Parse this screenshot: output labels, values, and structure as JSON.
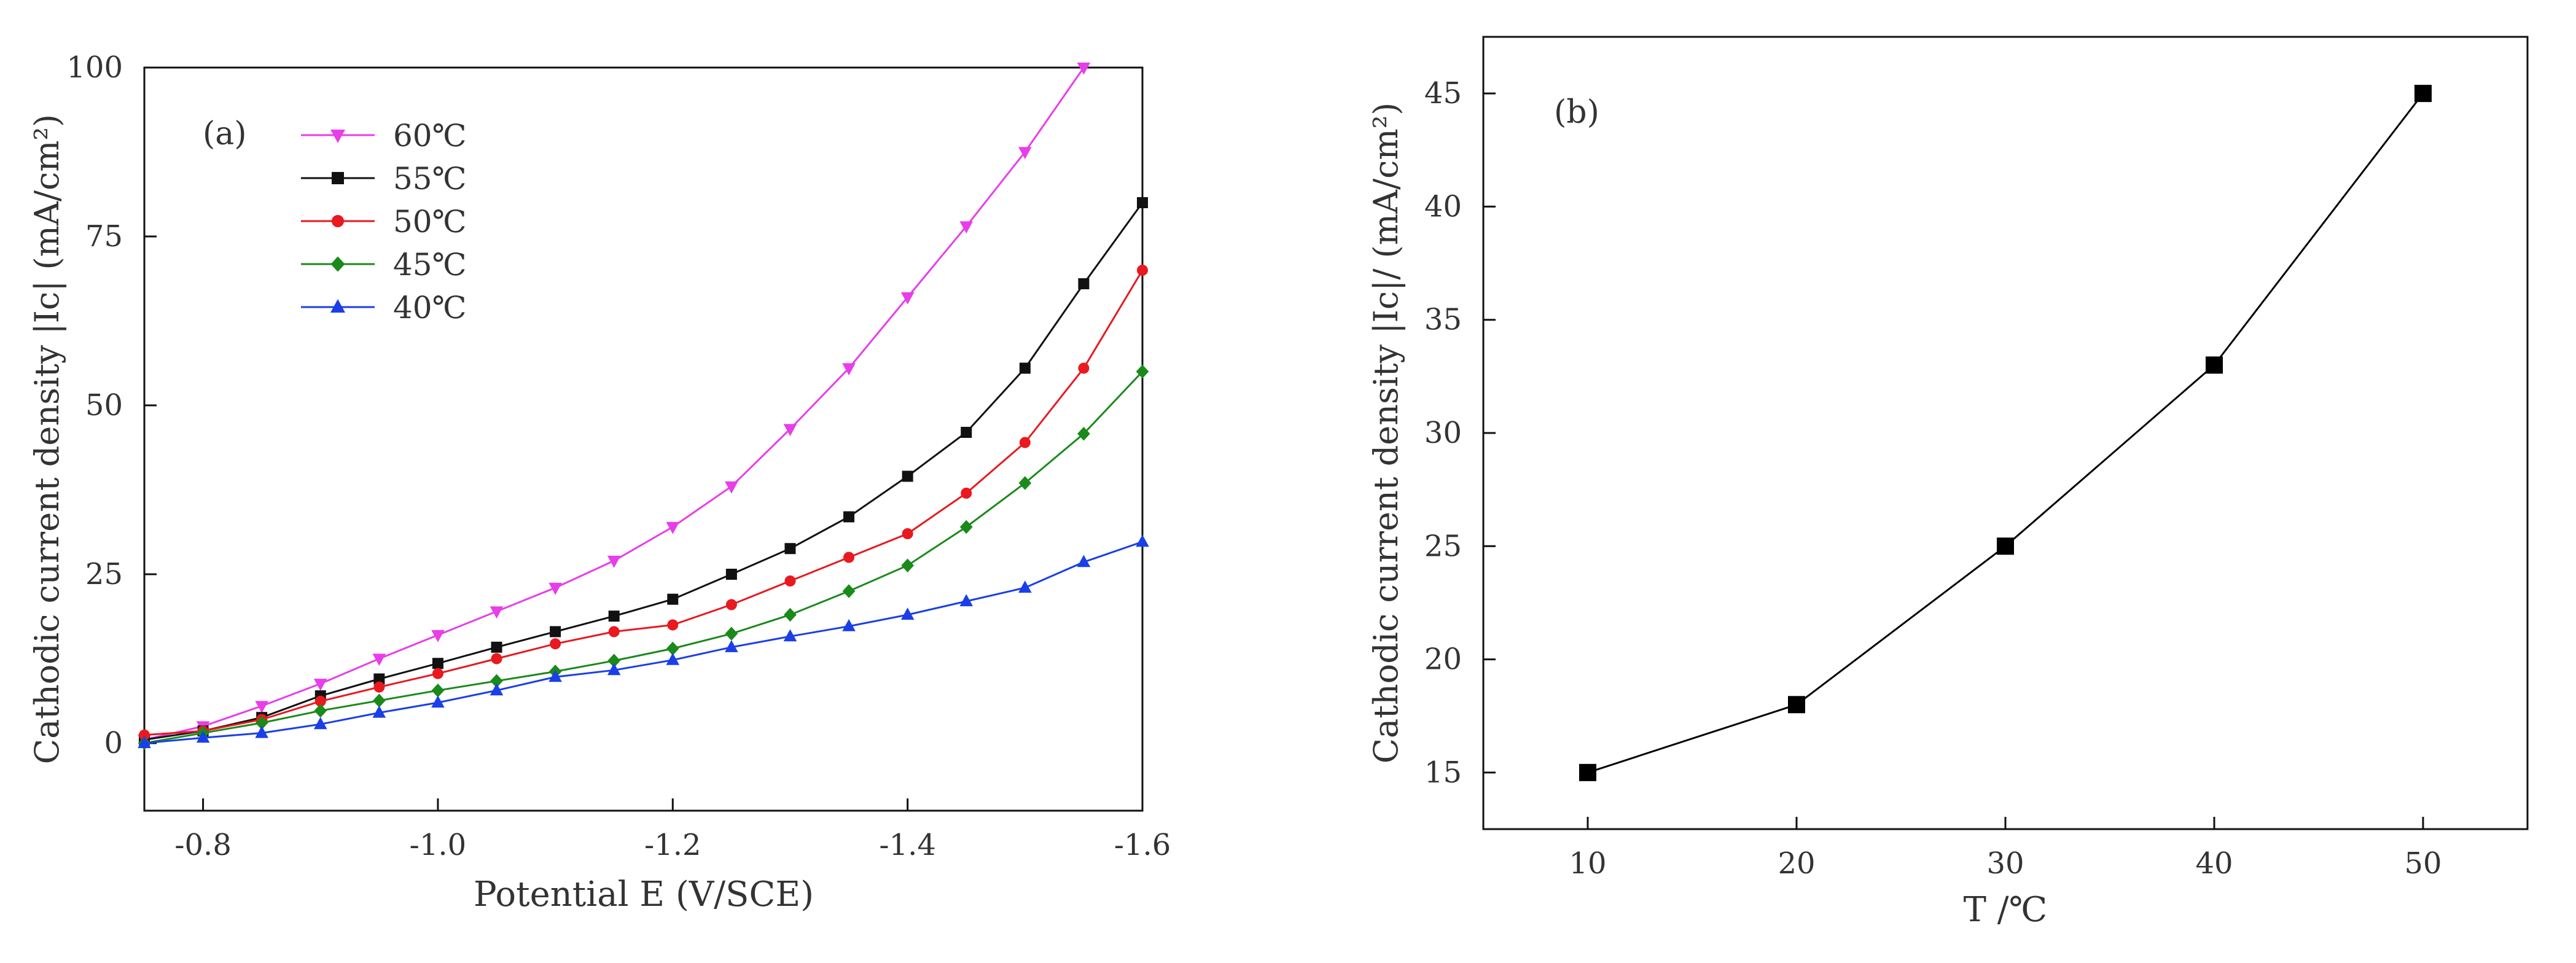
{
  "chart_data": [
    {
      "panel": "(a)",
      "type": "line",
      "title": "",
      "xlabel": "Potential E (V/SCE)",
      "ylabel": "Cathodic current density |Ic| (mA/cm²)",
      "xlim": [
        -0.75,
        -1.6
      ],
      "ylim": [
        -10,
        100
      ],
      "xticks": [
        -0.8,
        -1.0,
        -1.2,
        -1.4,
        -1.6
      ],
      "yticks": [
        0,
        25,
        50,
        75,
        100
      ],
      "xtick_labels": [
        "-0.8",
        "-1.0",
        "-1.2",
        "-1.4",
        "-1.6"
      ],
      "ytick_labels": [
        "0",
        "25",
        "50",
        "75",
        "100"
      ],
      "legend_position": "top-left",
      "x": [
        -0.75,
        -0.8,
        -0.85,
        -0.9,
        -0.95,
        -1.0,
        -1.05,
        -1.1,
        -1.15,
        -1.2,
        -1.25,
        -1.3,
        -1.35,
        -1.4,
        -1.45,
        -1.5,
        -1.55,
        -1.6
      ],
      "series": [
        {
          "name": "60℃",
          "color": "#e83ee8",
          "marker": "triangle-down",
          "values": [
            0.5,
            2.5,
            5.5,
            8.8,
            12.5,
            16.0,
            19.5,
            23.0,
            27.0,
            32.0,
            38.0,
            46.5,
            55.5,
            66.0,
            76.5,
            87.5,
            100.0,
            null
          ]
        },
        {
          "name": "55℃",
          "color": "#111111",
          "marker": "square",
          "values": [
            0.5,
            1.8,
            3.8,
            7.0,
            9.5,
            11.8,
            14.2,
            16.5,
            18.8,
            21.3,
            25.0,
            28.8,
            33.5,
            39.5,
            46.0,
            55.5,
            68.0,
            80.0
          ]
        },
        {
          "name": "50℃",
          "color": "#e8191f",
          "marker": "circle",
          "values": [
            1.2,
            1.8,
            3.5,
            6.2,
            8.3,
            10.3,
            12.5,
            14.7,
            16.5,
            17.5,
            20.5,
            24.0,
            27.5,
            31.0,
            37.0,
            44.5,
            55.5,
            70.0
          ]
        },
        {
          "name": "45℃",
          "color": "#1a8a1a",
          "marker": "diamond",
          "values": [
            0.0,
            1.5,
            3.0,
            4.8,
            6.3,
            7.8,
            9.2,
            10.6,
            12.2,
            14.0,
            16.2,
            19.0,
            22.5,
            26.3,
            32.0,
            38.5,
            45.8,
            55.0
          ]
        },
        {
          "name": "40℃",
          "color": "#1a3fe8",
          "marker": "triangle-up",
          "values": [
            0.0,
            0.8,
            1.5,
            2.8,
            4.5,
            6.0,
            7.8,
            9.8,
            10.8,
            12.3,
            14.2,
            15.8,
            17.3,
            19.0,
            21.0,
            23.0,
            26.8,
            29.8
          ]
        }
      ]
    },
    {
      "panel": "(b)",
      "type": "line",
      "title": "",
      "xlabel": "T /℃",
      "ylabel": "Cathodic current density |Ic|/ (mA/cm²)",
      "xlim": [
        5,
        55
      ],
      "ylim": [
        12.5,
        47.5
      ],
      "xticks": [
        10,
        20,
        30,
        40,
        50
      ],
      "yticks": [
        15,
        20,
        25,
        30,
        35,
        40,
        45
      ],
      "xtick_labels": [
        "10",
        "20",
        "30",
        "40",
        "50"
      ],
      "ytick_labels": [
        "15",
        "20",
        "25",
        "30",
        "35",
        "40",
        "45"
      ],
      "grid": false,
      "series": [
        {
          "name": "|Ic|",
          "color": "#000000",
          "marker": "square",
          "x": [
            10,
            20,
            30,
            40,
            50
          ],
          "values": [
            15,
            18,
            25,
            33,
            45
          ]
        }
      ]
    }
  ]
}
